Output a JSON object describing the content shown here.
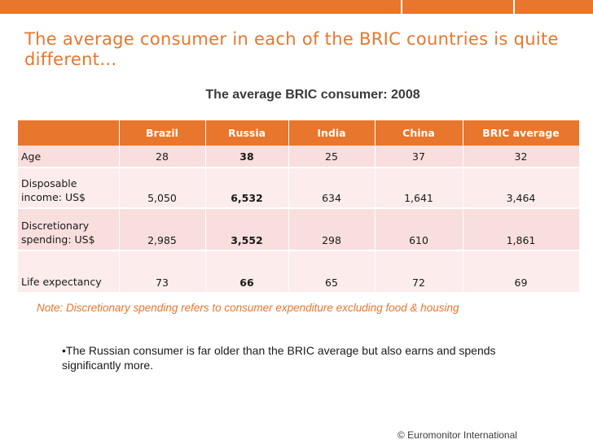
{
  "colors": {
    "accent": "#e8762c",
    "row_pink": "#f9dede"
  },
  "headline": "The average consumer in each of the BRIC countries is quite different…",
  "table_title": "The average BRIC consumer: 2008",
  "table": {
    "headers": [
      "",
      "Brazil",
      "Russia",
      "India",
      "China",
      "BRIC average"
    ],
    "rows": [
      {
        "label": "Age",
        "values": [
          "28",
          "38",
          "25",
          "37",
          "32"
        ]
      },
      {
        "label": "Disposable income: US$",
        "values": [
          "5,050",
          "6,532",
          "634",
          "1,641",
          "3,464"
        ]
      },
      {
        "label": "Discretionary spending: US$",
        "values": [
          "2,985",
          "3,552",
          "298",
          "610",
          "1,861"
        ]
      },
      {
        "label": "Life expectancy",
        "values": [
          "73",
          "66",
          "65",
          "72",
          "69"
        ]
      }
    ]
  },
  "note": "Note: Discretionary spending refers to consumer expenditure excluding food & housing",
  "bullet": "•The Russian consumer is far older than the BRIC average but also earns and spends significantly more.",
  "copyright": "© Euromonitor International"
}
